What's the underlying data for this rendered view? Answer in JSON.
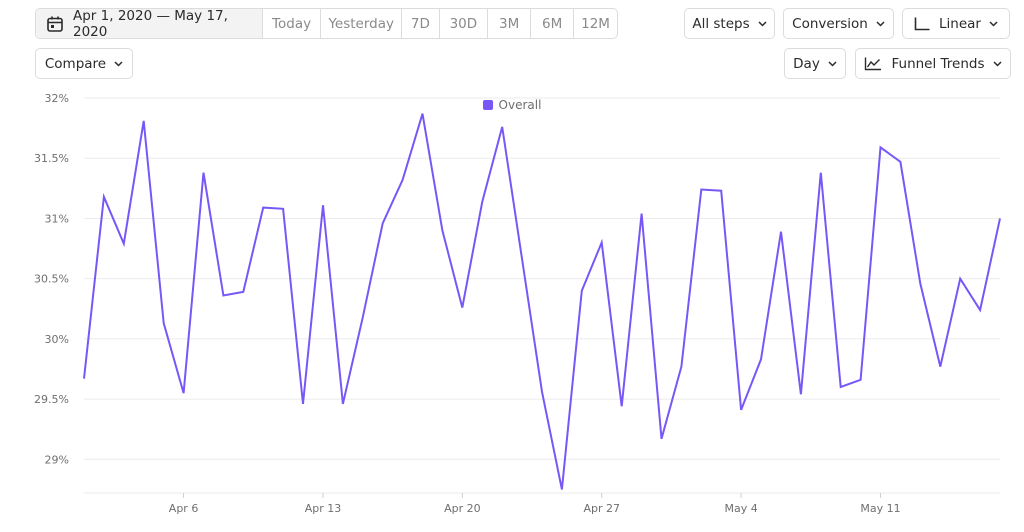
{
  "toolbar": {
    "date_range": "Apr 1, 2020 — May 17, 2020",
    "quick_ranges": [
      "Today",
      "Yesterday",
      "7D",
      "30D",
      "3M",
      "6M",
      "12M"
    ],
    "steps_label": "All steps",
    "metric_label": "Conversion",
    "scale_label": "Linear",
    "compare_label": "Compare",
    "interval_label": "Day",
    "view_label": "Funnel Trends"
  },
  "colors": {
    "series": "#7857f7",
    "grid": "#ebebeb"
  },
  "chart_data": {
    "type": "line",
    "title": "",
    "xlabel": "",
    "ylabel": "",
    "legend_placement": "top-center",
    "grid": true,
    "x_start": "2020-04-01",
    "x_end": "2020-05-17",
    "x_ticks": [
      {
        "date": "2020-04-06",
        "label": "Apr 6"
      },
      {
        "date": "2020-04-13",
        "label": "Apr 13"
      },
      {
        "date": "2020-04-20",
        "label": "Apr 20"
      },
      {
        "date": "2020-04-27",
        "label": "Apr 27"
      },
      {
        "date": "2020-05-04",
        "label": "May 4"
      },
      {
        "date": "2020-05-11",
        "label": "May 11"
      }
    ],
    "ylim": [
      28.72,
      32.05
    ],
    "y_ticks": [
      {
        "value": 29,
        "label": "29%"
      },
      {
        "value": 29.5,
        "label": "29.5%"
      },
      {
        "value": 30,
        "label": "30%"
      },
      {
        "value": 30.5,
        "label": "30.5%"
      },
      {
        "value": 31,
        "label": "31%"
      },
      {
        "value": 31.5,
        "label": "31.5%"
      },
      {
        "value": 32,
        "label": "32%"
      }
    ],
    "series": [
      {
        "name": "Overall",
        "x": [
          "2020-04-01",
          "2020-04-02",
          "2020-04-03",
          "2020-04-04",
          "2020-04-05",
          "2020-04-06",
          "2020-04-07",
          "2020-04-08",
          "2020-04-09",
          "2020-04-10",
          "2020-04-11",
          "2020-04-12",
          "2020-04-13",
          "2020-04-14",
          "2020-04-15",
          "2020-04-16",
          "2020-04-17",
          "2020-04-18",
          "2020-04-19",
          "2020-04-20",
          "2020-04-21",
          "2020-04-22",
          "2020-04-23",
          "2020-04-24",
          "2020-04-25",
          "2020-04-26",
          "2020-04-27",
          "2020-04-28",
          "2020-04-29",
          "2020-04-30",
          "2020-05-01",
          "2020-05-02",
          "2020-05-03",
          "2020-05-04",
          "2020-05-05",
          "2020-05-06",
          "2020-05-07",
          "2020-05-08",
          "2020-05-09",
          "2020-05-10",
          "2020-05-11",
          "2020-05-12",
          "2020-05-13",
          "2020-05-14",
          "2020-05-15",
          "2020-05-16",
          "2020-05-17"
        ],
        "values": [
          29.67,
          31.18,
          30.79,
          31.81,
          30.13,
          29.55,
          31.38,
          30.36,
          30.39,
          31.09,
          31.08,
          29.46,
          31.11,
          29.46,
          30.18,
          30.96,
          31.32,
          31.87,
          30.9,
          30.26,
          31.14,
          31.76,
          30.66,
          29.56,
          28.75,
          30.4,
          30.8,
          29.44,
          31.04,
          29.17,
          29.77,
          31.24,
          31.23,
          29.41,
          29.83,
          30.89,
          29.54,
          31.38,
          29.6,
          29.66,
          31.59,
          31.47,
          30.46,
          29.77,
          30.5,
          30.24,
          31.0
        ]
      }
    ]
  }
}
